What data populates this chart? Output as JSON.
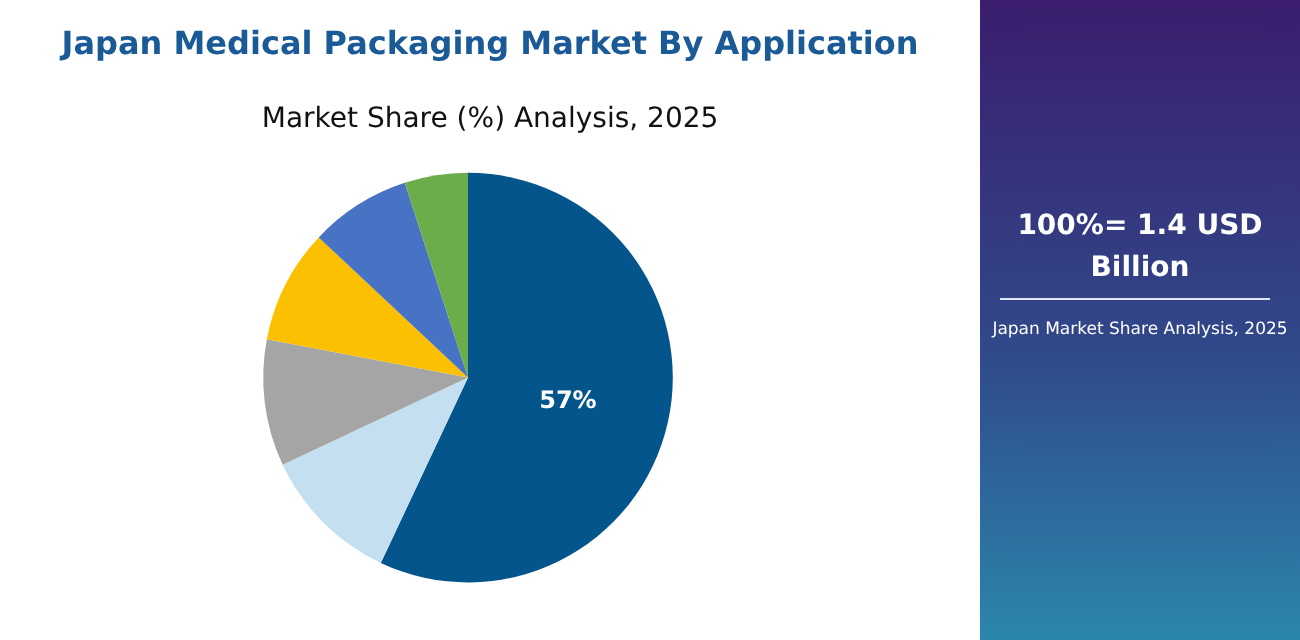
{
  "chart_data": {
    "type": "pie",
    "title": "Japan Medical Packaging Market By Application",
    "subtitle": "Market Share (%) Analysis, 2025",
    "categories": [
      null,
      null,
      null,
      null,
      null,
      null
    ],
    "values": [
      57,
      11,
      10,
      9,
      8,
      5
    ],
    "value_labels": [
      "57%",
      null,
      null,
      null,
      null,
      null
    ],
    "colors": [
      "#03558c",
      "#c4e0f0",
      "#a5a5a5",
      "#fcc002",
      "#4873c4",
      "#6aad4a"
    ],
    "annotations": [
      "100%= 1.4 USD Billion",
      "Japan Market Share Analysis, 2025"
    ]
  }
}
